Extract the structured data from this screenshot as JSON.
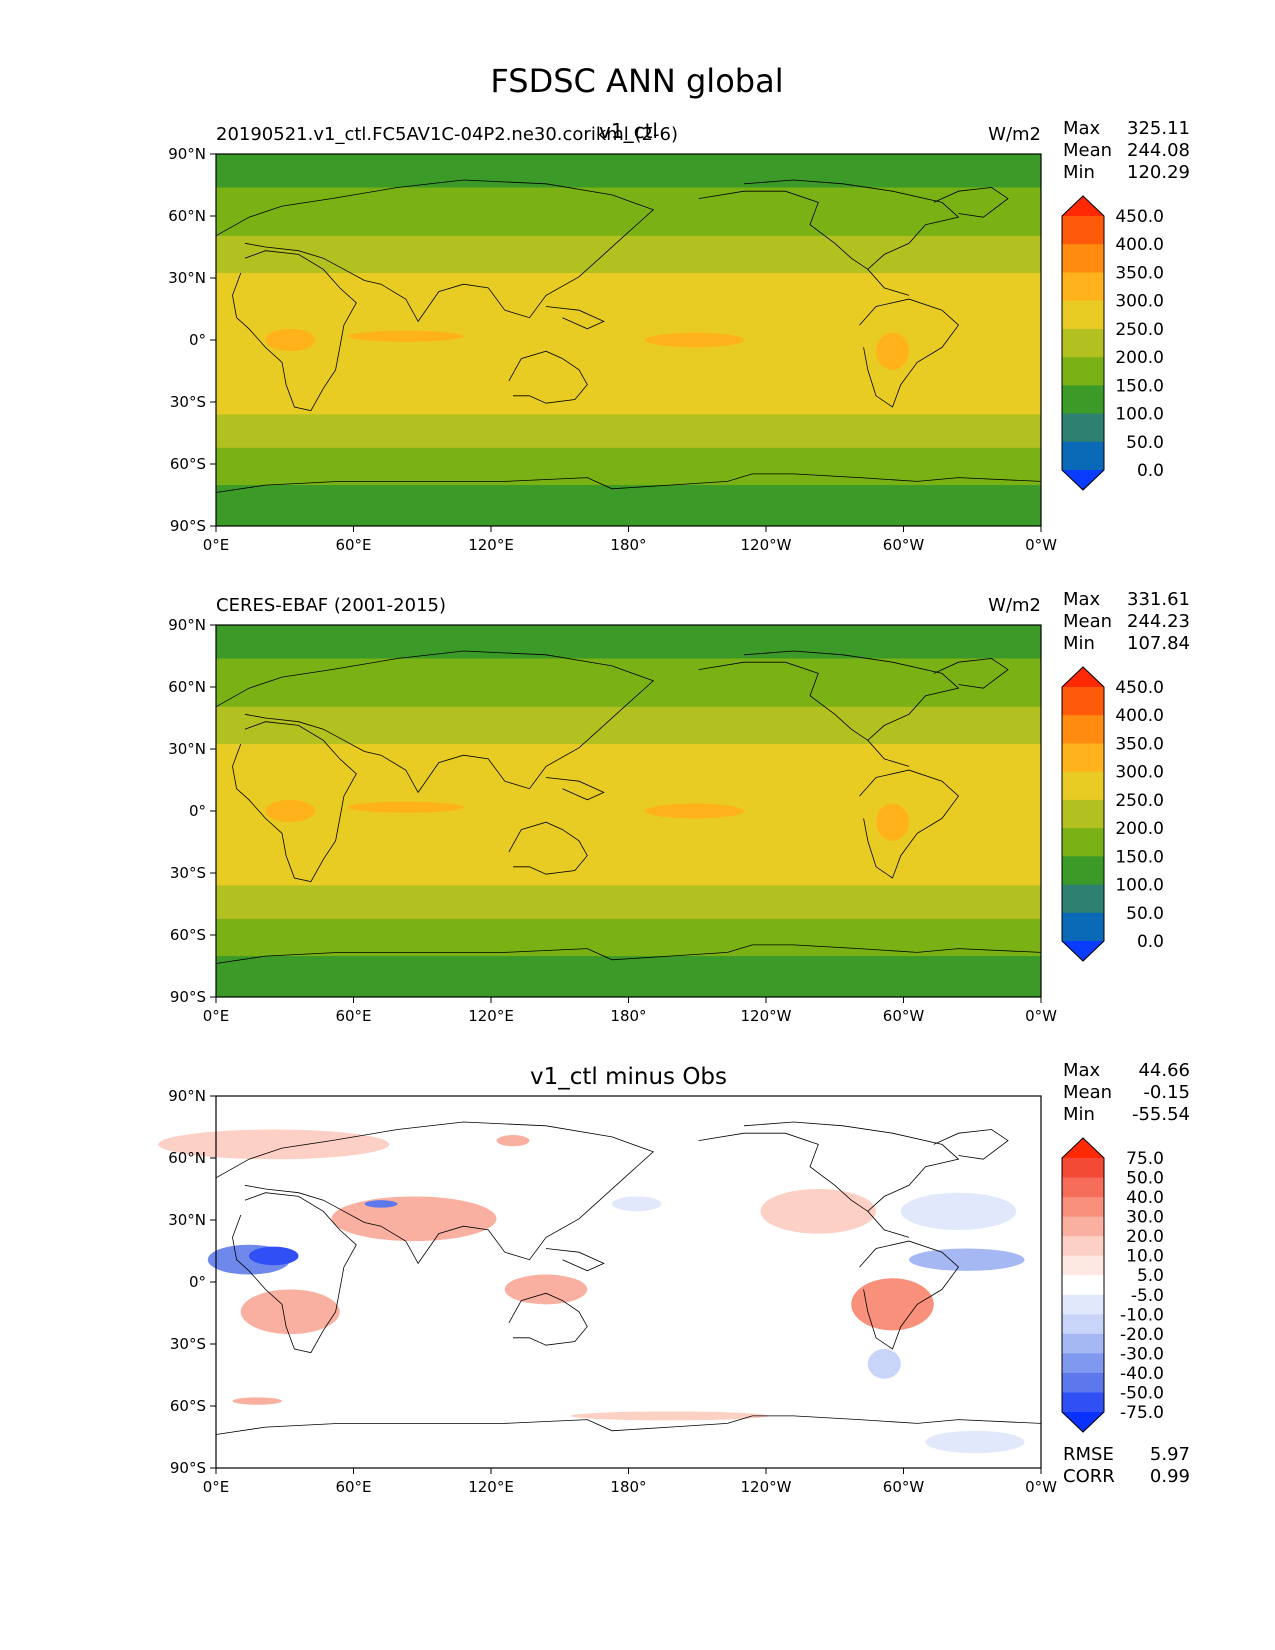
{
  "figure": {
    "title": "FSDSC ANN global"
  },
  "axes": {
    "lat_ticks": [
      "90°N",
      "60°N",
      "30°N",
      "0°",
      "30°S",
      "60°S",
      "90°S"
    ],
    "lon_ticks": [
      "0°E",
      "60°E",
      "120°E",
      "180°",
      "120°W",
      "60°W",
      "0°W"
    ]
  },
  "panels": [
    {
      "id": "test",
      "left_title": "20190521.v1_ctl.FC5AV1C-04P2.ne30.corikml (2-6)",
      "center_title": "v1_ctl",
      "units": "W/m2",
      "stats": [
        {
          "label": "Max",
          "value": "325.11"
        },
        {
          "label": "Mean",
          "value": "244.08"
        },
        {
          "label": "Min",
          "value": "120.29"
        }
      ],
      "colorbar": {
        "labels": [
          "450.0",
          "400.0",
          "350.0",
          "300.0",
          "250.0",
          "200.0",
          "150.0",
          "100.0",
          "50.0",
          "0.0"
        ],
        "colors": [
          "#ff2a05",
          "#ff5a0a",
          "#ff8c10",
          "#ffb21c",
          "#e8cc24",
          "#b2c020",
          "#7ab216",
          "#3c9a28",
          "#2e8070",
          "#0a6ab8",
          "#0a3cff"
        ]
      }
    },
    {
      "id": "reference",
      "left_title": "CERES-EBAF (2001-2015)",
      "center_title": "",
      "units": "W/m2",
      "stats": [
        {
          "label": "Max",
          "value": "331.61"
        },
        {
          "label": "Mean",
          "value": "244.23"
        },
        {
          "label": "Min",
          "value": "107.84"
        }
      ],
      "colorbar": {
        "labels": [
          "450.0",
          "400.0",
          "350.0",
          "300.0",
          "250.0",
          "200.0",
          "150.0",
          "100.0",
          "50.0",
          "0.0"
        ],
        "colors": [
          "#ff2a05",
          "#ff5a0a",
          "#ff8c10",
          "#ffb21c",
          "#e8cc24",
          "#b2c020",
          "#7ab216",
          "#3c9a28",
          "#2e8070",
          "#0a6ab8",
          "#0a3cff"
        ]
      }
    },
    {
      "id": "difference",
      "left_title": "",
      "center_title": "v1_ctl minus Obs",
      "units": "",
      "stats": [
        {
          "label": "Max",
          "value": "44.66"
        },
        {
          "label": "Mean",
          "value": "-0.15"
        },
        {
          "label": "Min",
          "value": "-55.54"
        }
      ],
      "colorbar": {
        "labels": [
          "75.0",
          "50.0",
          "40.0",
          "30.0",
          "20.0",
          "10.0",
          "5.0",
          "-5.0",
          "-10.0",
          "-20.0",
          "-30.0",
          "-40.0",
          "-50.0",
          "-75.0"
        ],
        "colors": [
          "#ff2a05",
          "#f24a35",
          "#f66e5a",
          "#f8907c",
          "#fab0a0",
          "#fcd0c4",
          "#fde8e2",
          "#ffffff",
          "#e2e8fb",
          "#c8d4f8",
          "#a6b8f3",
          "#8098ee",
          "#5c78ec",
          "#3050f5",
          "#0a32ff"
        ]
      },
      "metrics": [
        {
          "label": "RMSE",
          "value": "5.97"
        },
        {
          "label": "CORR",
          "value": "0.99"
        }
      ]
    }
  ]
}
